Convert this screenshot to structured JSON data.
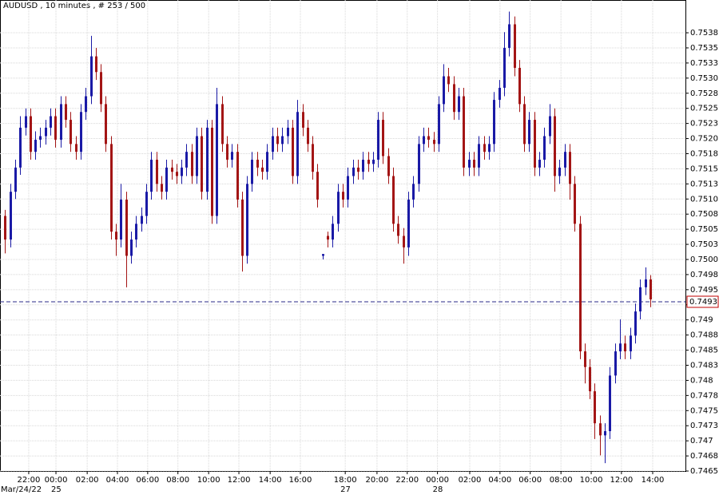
{
  "chart_data": {
    "type": "candlestick",
    "title": "AUDUSD , 10 minutes , # 253 / 500",
    "up_color": "#1a1aa6",
    "down_color": "#a31515",
    "grid": true,
    "xlim": [
      -1,
      135
    ],
    "ylim": [
      0.7465,
      0.75416
    ],
    "xticks": [
      {
        "value": 4.7,
        "label": "22:00"
      },
      {
        "value": 10.1,
        "label": "00:00"
      },
      {
        "value": 16.3,
        "label": "02:00"
      },
      {
        "value": 22.3,
        "label": "04:00"
      },
      {
        "value": 28.3,
        "label": "06:00"
      },
      {
        "value": 34.3,
        "label": "08:00"
      },
      {
        "value": 40.4,
        "label": "10:00"
      },
      {
        "value": 46.4,
        "label": "12:00"
      },
      {
        "value": 52.6,
        "label": "14:00"
      },
      {
        "value": 58.6,
        "label": "16:00"
      },
      {
        "value": 67.5,
        "label": "18:00"
      },
      {
        "value": 73.8,
        "label": "20:00"
      },
      {
        "value": 79.8,
        "label": "22:00"
      },
      {
        "value": 85.8,
        "label": "00:00"
      },
      {
        "value": 92.2,
        "label": "02:00"
      },
      {
        "value": 98.2,
        "label": "04:00"
      },
      {
        "value": 104.2,
        "label": "06:00"
      },
      {
        "value": 110.3,
        "label": "08:00"
      },
      {
        "value": 116.3,
        "label": "10:00"
      },
      {
        "value": 122.3,
        "label": "12:00"
      },
      {
        "value": 128.5,
        "label": "14:00"
      }
    ],
    "dates": [
      {
        "value": -0.2,
        "label": "Mar/24/22"
      },
      {
        "value": 10.1,
        "label": "25"
      },
      {
        "value": 67.5,
        "label": "27"
      },
      {
        "value": 85.8,
        "label": "28"
      }
    ],
    "yticks": [
      0.7465,
      {
        "value": 0.74675,
        "label": "0.7468"
      },
      0.747,
      {
        "value": 0.74725,
        "label": "0.7473"
      },
      0.7475,
      {
        "value": 0.74775,
        "label": "0.7478"
      },
      0.748,
      {
        "value": 0.74825,
        "label": "0.7483"
      },
      0.7485,
      {
        "value": 0.74875,
        "label": "0.7488"
      },
      0.749,
      {
        "value": 0.74925,
        "label": "0.7493"
      },
      0.7495,
      {
        "value": 0.74975,
        "label": "0.7498"
      },
      {
        "value": 0.75,
        "label": "0.7500"
      },
      {
        "value": 0.75025,
        "label": "0.7503"
      },
      0.7505,
      {
        "value": 0.75075,
        "label": "0.7508"
      },
      {
        "value": 0.751,
        "label": "0.7510"
      },
      {
        "value": 0.75125,
        "label": "0.7513"
      },
      0.7515,
      {
        "value": 0.75175,
        "label": "0.7518"
      },
      {
        "value": 0.752,
        "label": "0.7520"
      },
      {
        "value": 0.75225,
        "label": "0.7523"
      },
      0.7525,
      {
        "value": 0.75275,
        "label": "0.7528"
      },
      {
        "value": 0.753,
        "label": "0.7530"
      },
      {
        "value": 0.75325,
        "label": "0.7533"
      },
      0.7535,
      {
        "value": 0.75375,
        "label": "0.7538"
      }
    ],
    "last_price": 0.7493,
    "open": [
      0.75072,
      0.75033,
      0.75112,
      0.75152,
      0.75218,
      0.75237,
      0.75178,
      0.75198,
      0.75204,
      0.75218,
      0.75237,
      0.75198,
      0.75257,
      0.75231,
      0.75191,
      0.75178,
      0.75244,
      0.7527,
      0.75336,
      0.7531,
      0.75257,
      0.75191,
      0.75046,
      0.75033,
      0.75099,
      0.75006,
      0.75033,
      0.75059,
      0.75072,
      0.75112,
      0.75165,
      0.75125,
      0.75112,
      0.75152,
      0.75145,
      0.75138,
      0.75152,
      0.75178,
      0.75138,
      0.75204,
      0.75112,
      0.75218,
      0.75072,
      0.75257,
      0.75191,
      0.75165,
      0.75178,
      0.75099,
      0.75006,
      0.75125,
      0.75165,
      0.75152,
      0.75145,
      0.75178,
      0.75204,
      0.75191,
      0.75204,
      0.75218,
      0.75138,
      0.75244,
      0.75218,
      0.75191,
      0.75145,
      0.75006,
      0.75039,
      0.75033,
      0.75059,
      0.75112,
      0.75099,
      0.75138,
      0.75152,
      0.75145,
      0.75165,
      0.75158,
      0.75165,
      0.75231,
      0.75171,
      0.75138,
      0.75059,
      0.75039,
      0.7502,
      0.75099,
      0.75125,
      0.75191,
      0.75204,
      0.75198,
      0.75191,
      0.75257,
      0.75303,
      0.7529,
      0.75244,
      0.7527,
      0.75152,
      0.75165,
      0.75152,
      0.75191,
      0.75178,
      0.75191,
      0.75264,
      0.75284,
      0.7535,
      0.75389,
      0.75317,
      0.75257,
      0.75191,
      0.75231,
      0.75152,
      0.75165,
      0.75204,
      0.75237,
      0.75138,
      0.75152,
      0.75178,
      0.75125,
      0.75059,
      0.74848,
      0.74822,
      0.74782,
      0.74729,
      0.74709,
      0.74716,
      0.74808,
      0.74848,
      0.74861,
      0.74848,
      0.74874,
      0.74914,
      0.74954,
      0.74967
    ],
    "high": [
      0.75082,
      0.75125,
      0.75165,
      0.75237,
      0.7525,
      0.7525,
      0.75212,
      0.75218,
      0.75231,
      0.7525,
      0.7525,
      0.7527,
      0.7527,
      0.75244,
      0.75204,
      0.75257,
      0.75284,
      0.7537,
      0.7535,
      0.75323,
      0.7527,
      0.75204,
      0.75059,
      0.75125,
      0.75112,
      0.75046,
      0.75072,
      0.75086,
      0.75125,
      0.75178,
      0.75178,
      0.75138,
      0.75165,
      0.75165,
      0.75158,
      0.75165,
      0.75191,
      0.75191,
      0.75218,
      0.75218,
      0.75231,
      0.75231,
      0.75284,
      0.7527,
      0.75204,
      0.75191,
      0.75191,
      0.75112,
      0.75138,
      0.75178,
      0.75178,
      0.75165,
      0.75191,
      0.75218,
      0.75218,
      0.75218,
      0.75231,
      0.75231,
      0.75264,
      0.75257,
      0.75231,
      0.75204,
      0.75158,
      0.75009,
      0.75046,
      0.75072,
      0.75125,
      0.75125,
      0.75152,
      0.75165,
      0.75165,
      0.75178,
      0.75178,
      0.75178,
      0.75244,
      0.75244,
      0.75184,
      0.75152,
      0.75072,
      0.75052,
      0.75112,
      0.75138,
      0.75204,
      0.75218,
      0.75218,
      0.75211,
      0.7527,
      0.75323,
      0.75317,
      0.75303,
      0.75284,
      0.75284,
      0.75178,
      0.75178,
      0.75204,
      0.75204,
      0.75204,
      0.75277,
      0.75297,
      0.75376,
      0.7541,
      0.75402,
      0.7533,
      0.7527,
      0.75244,
      0.75244,
      0.75178,
      0.75218,
      0.75257,
      0.7525,
      0.75165,
      0.75191,
      0.75191,
      0.75138,
      0.75072,
      0.74861,
      0.74835,
      0.74795,
      0.74742,
      0.74729,
      0.74822,
      0.74861,
      0.74901,
      0.74874,
      0.74887,
      0.74927,
      0.74967,
      0.74987,
      0.74974
    ],
    "low": [
      0.7501,
      0.7502,
      0.751,
      0.7514,
      0.75205,
      0.75165,
      0.75165,
      0.75185,
      0.7519,
      0.75205,
      0.75185,
      0.75185,
      0.75218,
      0.75178,
      0.75165,
      0.75165,
      0.75231,
      0.75257,
      0.75297,
      0.75244,
      0.75178,
      0.75033,
      0.75006,
      0.7502,
      0.74954,
      0.74993,
      0.7502,
      0.75046,
      0.75059,
      0.75099,
      0.75112,
      0.75099,
      0.75099,
      0.75132,
      0.75125,
      0.75125,
      0.75138,
      0.75125,
      0.75125,
      0.75099,
      0.75099,
      0.75059,
      0.75059,
      0.75178,
      0.75152,
      0.75152,
      0.75086,
      0.7498,
      0.74993,
      0.75112,
      0.75138,
      0.75132,
      0.75132,
      0.75165,
      0.75178,
      0.75178,
      0.75191,
      0.75125,
      0.75125,
      0.75204,
      0.75178,
      0.75132,
      0.75086,
      0.75,
      0.7502,
      0.7502,
      0.75046,
      0.75086,
      0.75086,
      0.75125,
      0.75132,
      0.75132,
      0.75145,
      0.75145,
      0.75152,
      0.75158,
      0.75125,
      0.75046,
      0.75026,
      0.74993,
      0.75006,
      0.75086,
      0.75112,
      0.75178,
      0.75185,
      0.75178,
      0.75178,
      0.75244,
      0.75277,
      0.75231,
      0.75231,
      0.75138,
      0.75138,
      0.75138,
      0.75138,
      0.75165,
      0.75165,
      0.75178,
      0.75251,
      0.7527,
      0.75336,
      0.75303,
      0.75244,
      0.75178,
      0.75178,
      0.75138,
      0.75138,
      0.75152,
      0.75191,
      0.75112,
      0.75125,
      0.75138,
      0.75099,
      0.75046,
      0.74835,
      0.74795,
      0.74769,
      0.74703,
      0.74676,
      0.74663,
      0.74703,
      0.74795,
      0.74835,
      0.74835,
      0.74835,
      0.74861,
      0.74901,
      0.74941,
      0.74921
    ],
    "close": [
      0.75033,
      0.75112,
      0.75152,
      0.75218,
      0.75237,
      0.75178,
      0.75198,
      0.75204,
      0.75218,
      0.75237,
      0.75198,
      0.75257,
      0.75231,
      0.75191,
      0.75178,
      0.75244,
      0.7527,
      0.75336,
      0.7531,
      0.75257,
      0.75191,
      0.75046,
      0.75033,
      0.75099,
      0.75006,
      0.75033,
      0.75059,
      0.75072,
      0.75112,
      0.75165,
      0.75125,
      0.75112,
      0.75152,
      0.75145,
      0.75138,
      0.75152,
      0.75178,
      0.75138,
      0.75204,
      0.75112,
      0.75218,
      0.75072,
      0.75257,
      0.75191,
      0.75165,
      0.75178,
      0.75099,
      0.75006,
      0.75125,
      0.75165,
      0.75152,
      0.75145,
      0.75178,
      0.75204,
      0.75191,
      0.75204,
      0.75218,
      0.75138,
      0.75244,
      0.75218,
      0.75191,
      0.75145,
      0.75099,
      0.75009,
      0.75033,
      0.75059,
      0.75112,
      0.75099,
      0.75138,
      0.75152,
      0.75145,
      0.75165,
      0.75158,
      0.75165,
      0.75231,
      0.75171,
      0.75138,
      0.75059,
      0.75039,
      0.7502,
      0.75099,
      0.75125,
      0.75191,
      0.75204,
      0.75198,
      0.75191,
      0.75257,
      0.75303,
      0.7529,
      0.75244,
      0.7527,
      0.75152,
      0.75165,
      0.75152,
      0.75191,
      0.75178,
      0.75191,
      0.75264,
      0.75284,
      0.7535,
      0.75389,
      0.75317,
      0.75257,
      0.75191,
      0.75231,
      0.75152,
      0.75165,
      0.75204,
      0.75237,
      0.75138,
      0.75152,
      0.75178,
      0.75125,
      0.75059,
      0.74848,
      0.74822,
      0.74782,
      0.74729,
      0.74709,
      0.74716,
      0.74808,
      0.74848,
      0.74861,
      0.74848,
      0.74874,
      0.74914,
      0.74954,
      0.74967,
      0.74934
    ]
  }
}
